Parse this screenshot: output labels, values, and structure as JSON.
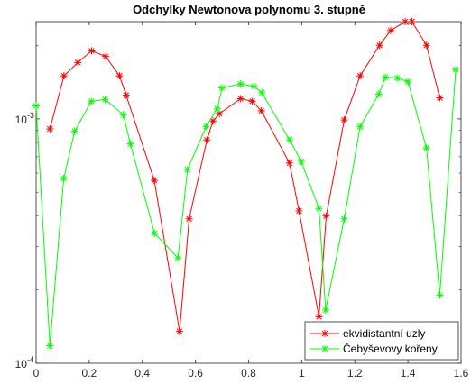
{
  "chart_data": {
    "type": "line",
    "title": "Odchylky Newtonova polynomu 3. stupně",
    "xlabel": "",
    "ylabel": "",
    "xlim": [
      0,
      1.6
    ],
    "ylim": [
      0.0001,
      0.0025
    ],
    "yscale": "log",
    "x_ticks": [
      0,
      0.2,
      0.4,
      0.6,
      0.8,
      1,
      1.2,
      1.4,
      1.6
    ],
    "x_tick_labels": [
      "0",
      "0.2",
      "0.4",
      "0.6",
      "0.8",
      "1",
      "1.2",
      "1.4",
      "1.6"
    ],
    "y_ticks": [
      0.0001,
      0.001
    ],
    "y_tick_labels": [
      {
        "base": "10",
        "exp": "-4"
      },
      {
        "base": "10",
        "exp": "-3"
      }
    ],
    "grid": false,
    "legend_position": "bottom-right",
    "series": [
      {
        "name": "ekvidistantní uzly",
        "color": "#ff0000",
        "marker": "asterisk",
        "x": [
          0.052,
          0.105,
          0.157,
          0.209,
          0.262,
          0.314,
          0.339,
          0.445,
          0.54,
          0.576,
          0.643,
          0.666,
          0.69,
          0.77,
          0.814,
          0.848,
          0.954,
          0.99,
          1.065,
          1.092,
          1.16,
          1.22,
          1.293,
          1.335,
          1.39,
          1.415,
          1.47,
          1.52
        ],
        "y": [
          0.00091,
          0.0015,
          0.0017,
          0.0019,
          0.0018,
          0.0015,
          0.00125,
          0.00056,
          0.000135,
          0.00039,
          0.00082,
          0.00098,
          0.00105,
          0.00121,
          0.00118,
          0.00108,
          0.00066,
          0.00042,
          0.000155,
          0.0004,
          0.00099,
          0.0015,
          0.002,
          0.0023,
          0.0025,
          0.0025,
          0.002,
          0.00122
        ]
      },
      {
        "name": "Čebyševovy kořeny",
        "color": "#00ff00",
        "marker": "asterisk",
        "x": [
          0.0,
          0.052,
          0.104,
          0.145,
          0.208,
          0.26,
          0.328,
          0.355,
          0.446,
          0.534,
          0.57,
          0.64,
          0.682,
          0.7,
          0.77,
          0.82,
          0.85,
          0.955,
          0.998,
          1.065,
          1.09,
          1.16,
          1.22,
          1.29,
          1.315,
          1.36,
          1.4,
          1.47,
          1.52,
          1.58
        ],
        "y": [
          0.00113,
          0.000118,
          0.00057,
          0.00089,
          0.00118,
          0.0012,
          0.00104,
          0.00079,
          0.00034,
          0.00027,
          0.00062,
          0.00093,
          0.0011,
          0.00134,
          0.00139,
          0.00136,
          0.00128,
          0.00082,
          0.00067,
          0.00043,
          0.000165,
          0.00039,
          0.00093,
          0.00126,
          0.00148,
          0.00147,
          0.00142,
          0.00076,
          0.00019,
          0.00159
        ]
      }
    ]
  }
}
